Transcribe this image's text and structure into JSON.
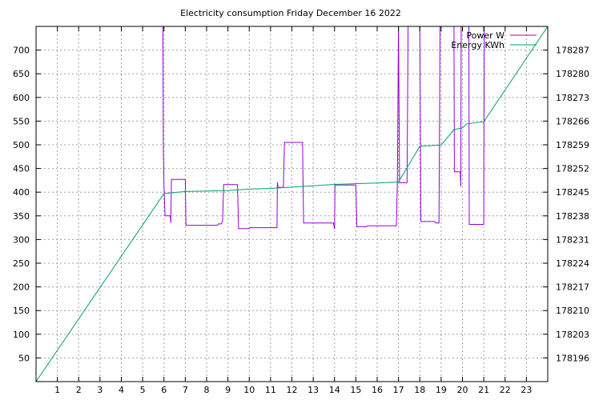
{
  "chart_data": {
    "type": "line",
    "title": "Electricity consumption Friday December 16 2022",
    "xlabel": "",
    "ylabel": "",
    "y2label": "",
    "xlim": [
      0,
      24
    ],
    "ylim": [
      0,
      750
    ],
    "y2lim": [
      178189,
      178294
    ],
    "x_ticks": [
      1,
      2,
      3,
      4,
      5,
      6,
      7,
      8,
      9,
      10,
      11,
      12,
      13,
      14,
      15,
      16,
      17,
      18,
      19,
      20,
      21,
      22,
      23
    ],
    "y_ticks": [
      50,
      100,
      150,
      200,
      250,
      300,
      350,
      400,
      450,
      500,
      550,
      600,
      650,
      700
    ],
    "y2_ticks": [
      178196,
      178203,
      178210,
      178217,
      178224,
      178231,
      178238,
      178245,
      178252,
      178259,
      178266,
      178273,
      178280,
      178287
    ],
    "grid": true,
    "legend_position": "top-right",
    "series": [
      {
        "name": "Power W",
        "axis": "left",
        "color": "#9400d3",
        "points": [
          [
            5.95,
            750
          ],
          [
            5.97,
            490
          ],
          [
            6.0,
            410
          ],
          [
            6.05,
            350
          ],
          [
            6.3,
            350
          ],
          [
            6.32,
            335
          ],
          [
            6.35,
            427
          ],
          [
            7.0,
            427
          ],
          [
            7.03,
            330
          ],
          [
            8.5,
            330
          ],
          [
            8.55,
            333
          ],
          [
            8.7,
            333
          ],
          [
            8.75,
            340
          ],
          [
            8.8,
            416
          ],
          [
            9.45,
            416
          ],
          [
            9.5,
            323
          ],
          [
            10.0,
            323
          ],
          [
            10.05,
            325
          ],
          [
            11.3,
            325
          ],
          [
            11.32,
            421
          ],
          [
            11.35,
            410
          ],
          [
            11.6,
            410
          ],
          [
            11.65,
            505
          ],
          [
            12.5,
            505
          ],
          [
            12.55,
            335
          ],
          [
            13.95,
            335
          ],
          [
            14.0,
            322
          ],
          [
            14.02,
            415
          ],
          [
            15.0,
            415
          ],
          [
            15.05,
            327
          ],
          [
            15.5,
            327
          ],
          [
            15.55,
            329
          ],
          [
            16.9,
            329
          ],
          [
            16.95,
            432
          ],
          [
            17.0,
            750
          ],
          [
            17.05,
            420
          ],
          [
            17.4,
            420
          ],
          [
            17.45,
            750
          ],
          [
            18.0,
            750
          ],
          [
            18.05,
            338
          ],
          [
            18.7,
            338
          ],
          [
            18.75,
            335
          ],
          [
            18.9,
            335
          ],
          [
            18.95,
            750
          ],
          [
            19.6,
            750
          ],
          [
            19.62,
            443
          ],
          [
            19.9,
            443
          ],
          [
            19.92,
            412
          ],
          [
            19.94,
            750
          ],
          [
            20.3,
            750
          ],
          [
            20.32,
            332
          ],
          [
            21.0,
            332
          ],
          [
            21.02,
            750
          ]
        ]
      },
      {
        "name": "Energy KWh",
        "axis": "right",
        "color": "#009e73",
        "points": [
          [
            0,
            178189
          ],
          [
            6.0,
            178244.6
          ],
          [
            7.0,
            178245.2
          ],
          [
            9.0,
            178245.5
          ],
          [
            10.0,
            178245.9
          ],
          [
            11.0,
            178246.1
          ],
          [
            12.0,
            178246.5
          ],
          [
            13.0,
            178246.9
          ],
          [
            14.0,
            178247.3
          ],
          [
            15.0,
            178247.5
          ],
          [
            16.0,
            178247.7
          ],
          [
            17.0,
            178248
          ],
          [
            18.0,
            178258.6
          ],
          [
            19.0,
            178258.9
          ],
          [
            19.6,
            178263.5
          ],
          [
            20.0,
            178264
          ],
          [
            20.2,
            178265.2
          ],
          [
            21.0,
            178265.8
          ],
          [
            24.0,
            178294
          ]
        ]
      }
    ]
  }
}
